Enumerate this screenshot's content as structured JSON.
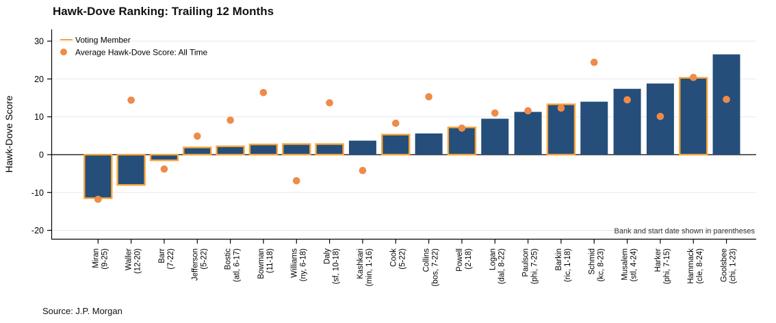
{
  "title": "Hawk-Dove Ranking: Trailing 12 Months",
  "source": "Source: J.P. Morgan",
  "colors": {
    "bar_fill": "#254E7A",
    "voting_outline": "#F8A63C",
    "avg_dot": "#EE8B49",
    "gridline": "#E8E8E8",
    "axis": "#000000",
    "note_text": "#333333"
  },
  "chart_data": {
    "type": "bar",
    "title": "Hawk-Dove Ranking: Trailing 12 Months",
    "xlabel": "",
    "ylabel": "Hawk-Dove Score",
    "ylim": [
      -23,
      33
    ],
    "yticks": [
      30,
      20,
      10,
      0,
      -10,
      -20
    ],
    "grid": true,
    "legend_position": "top-left",
    "annotation": "Bank and start date shown in parentheses",
    "legend": [
      {
        "label": "Voting Member",
        "swatch": "line"
      },
      {
        "label": "Average Hawk-Dove Score: All Time",
        "swatch": "dot"
      }
    ],
    "categories": [
      {
        "name": "Miran",
        "detail": "(9-25)"
      },
      {
        "name": "Waller",
        "detail": "(12-20)"
      },
      {
        "name": "Barr",
        "detail": "(7-22)"
      },
      {
        "name": "Jefferson",
        "detail": "(5-22)"
      },
      {
        "name": "Bostic",
        "detail": "(atl, 6-17)"
      },
      {
        "name": "Bowman",
        "detail": "(11-18)"
      },
      {
        "name": "Williams",
        "detail": "(ny, 6-18)"
      },
      {
        "name": "Daly",
        "detail": "(sf, 10-18)"
      },
      {
        "name": "Kashkari",
        "detail": "(min, 1-16)"
      },
      {
        "name": "Cook",
        "detail": "(5-22)"
      },
      {
        "name": "Collins",
        "detail": "(bos, 7-22)"
      },
      {
        "name": "Powell",
        "detail": "(2-18)"
      },
      {
        "name": "Logan",
        "detail": "(dal, 8-22)"
      },
      {
        "name": "Paulson",
        "detail": "(phi, 7-25)"
      },
      {
        "name": "Barkin",
        "detail": "(ric, 1-18)"
      },
      {
        "name": "Schmid",
        "detail": "(kc, 8-23)"
      },
      {
        "name": "Musalem",
        "detail": "(stl, 4-24)"
      },
      {
        "name": "Harker",
        "detail": "(phi, 7-15)"
      },
      {
        "name": "Hammack",
        "detail": "(cle, 8-24)"
      },
      {
        "name": "Goolsbee",
        "detail": "(chi, 1-23)"
      }
    ],
    "series": [
      {
        "name": "Hawk-Dove Score: Trailing 12 Months",
        "style": "bar",
        "values": [
          -11.5,
          -8.0,
          -1.5,
          1.9,
          2.2,
          2.7,
          2.8,
          2.8,
          3.7,
          5.3,
          5.6,
          7.2,
          9.5,
          11.3,
          13.3,
          14.0,
          17.4,
          18.8,
          20.3,
          26.5
        ]
      },
      {
        "name": "Average Hawk-Dove Score: All Time",
        "style": "dot",
        "values": [
          -11.8,
          14.4,
          -3.8,
          4.9,
          9.1,
          16.4,
          -6.9,
          13.7,
          -4.2,
          8.3,
          15.3,
          7.0,
          11.0,
          11.6,
          12.3,
          24.4,
          14.5,
          10.1,
          20.4,
          14.6
        ]
      }
    ],
    "voting_members": [
      true,
      true,
      true,
      true,
      true,
      true,
      true,
      true,
      false,
      true,
      false,
      true,
      false,
      false,
      true,
      false,
      false,
      false,
      true,
      false
    ]
  }
}
